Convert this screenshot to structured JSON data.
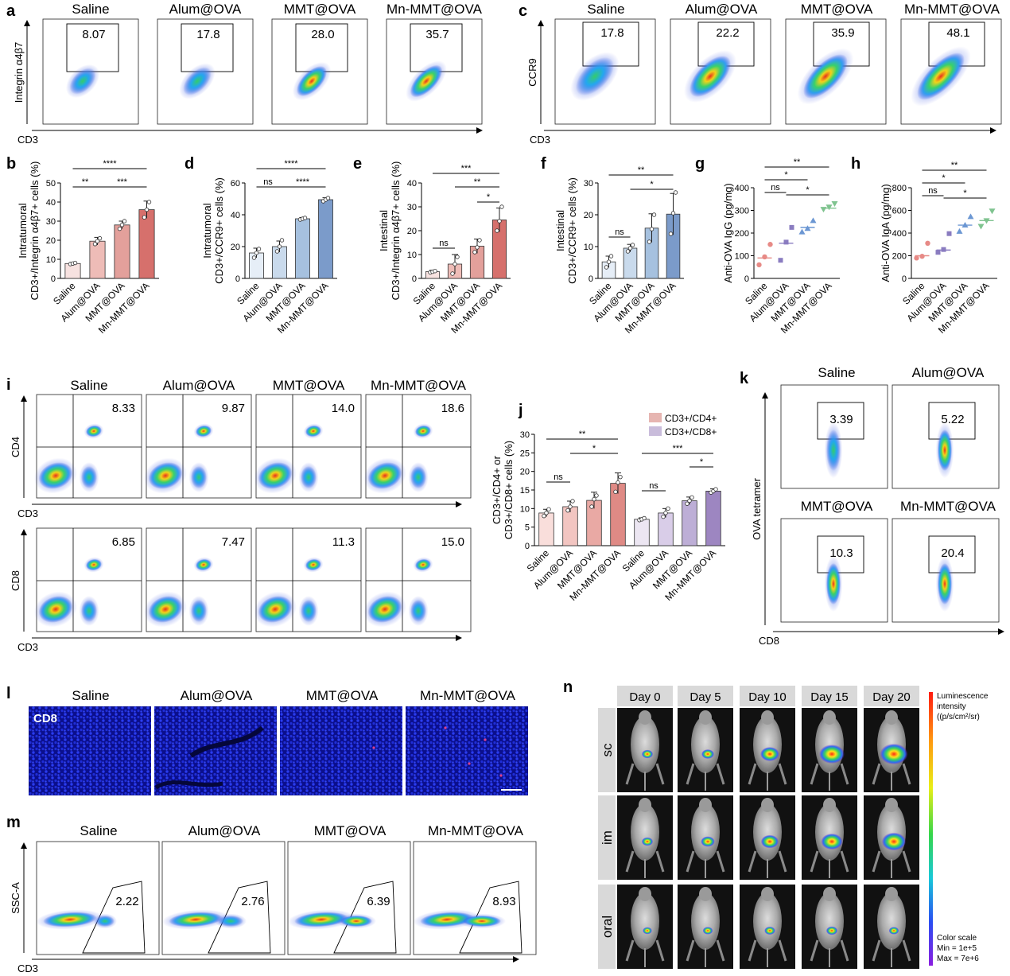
{
  "panel_letters": [
    "a",
    "b",
    "c",
    "d",
    "e",
    "f",
    "g",
    "h",
    "i",
    "j",
    "k",
    "l",
    "m",
    "n"
  ],
  "groups": [
    "Saline",
    "Alum@OVA",
    "MMT@OVA",
    "Mn-MMT@OVA"
  ],
  "flow_a": {
    "x_label": "CD3",
    "y_label": "Integrin α4β7",
    "values": [
      "8.07",
      "17.8",
      "28.0",
      "35.7"
    ]
  },
  "flow_c": {
    "x_label": "CD3",
    "y_label": "CCR9",
    "values": [
      "17.8",
      "22.2",
      "35.9",
      "48.1"
    ]
  },
  "flow_i_cd4": {
    "x_label": "CD3",
    "y_label": "CD4",
    "values": [
      "8.33",
      "9.87",
      "14.0",
      "18.6"
    ]
  },
  "flow_i_cd8": {
    "x_label": "CD3",
    "y_label": "CD8",
    "values": [
      "6.85",
      "7.47",
      "11.3",
      "15.0"
    ]
  },
  "flow_k": {
    "x_label": "CD8",
    "y_label": "OVA tetramer",
    "values": [
      "3.39",
      "5.22",
      "10.3",
      "20.4"
    ]
  },
  "flow_m": {
    "x_label": "CD3",
    "y_label": "SSC-A",
    "values": [
      "2.22",
      "2.76",
      "6.39",
      "8.93"
    ]
  },
  "panel_l": {
    "stain_label": "CD8"
  },
  "panel_n": {
    "days": [
      "Day 0",
      "Day 5",
      "Day 10",
      "Day 15",
      "Day 20"
    ],
    "routes": [
      "sc",
      "im",
      "oral"
    ],
    "scale_title": [
      "Luminescence",
      "intensity",
      "((p/s/cm²/sr)"
    ],
    "scale_notes": [
      "Color scale",
      "Min = 1e+5",
      "Max = 7e+6"
    ],
    "signal_level": [
      [
        0.2,
        0.25,
        0.5,
        0.75,
        0.85
      ],
      [
        0.2,
        0.3,
        0.45,
        0.6,
        0.7
      ],
      [
        0.12,
        0.15,
        0.18,
        0.2,
        0.15
      ]
    ]
  },
  "chart_data": [
    {
      "panel": "b",
      "type": "bar",
      "categories": [
        "Saline",
        "Alum@OVA",
        "MMT@OVA",
        "Mn-MMT@OVA"
      ],
      "values": [
        7.8,
        19.5,
        28.0,
        36.0
      ],
      "errors": [
        0.6,
        2.0,
        2.0,
        4.5
      ],
      "points": [
        [
          7.5,
          7.8,
          8.1
        ],
        [
          18,
          19.5,
          21
        ],
        [
          26,
          28,
          30
        ],
        [
          32,
          36,
          40
        ]
      ],
      "ylabel": [
        "Intratumoral",
        "CD3+/Integrin α4β7+ cells (%)"
      ],
      "ylim": [
        0,
        50
      ],
      "yticks": [
        0,
        10,
        20,
        30,
        40,
        50
      ],
      "colors": [
        "#f7e2e0",
        "#eebcb7",
        "#e3a09b",
        "#d6706c"
      ],
      "sig": [
        {
          "from": 0,
          "to": 3,
          "label": "****"
        },
        {
          "from": 0,
          "to": 1,
          "label": "**"
        },
        {
          "from": 1,
          "to": 3,
          "label": "***"
        }
      ]
    },
    {
      "panel": "d",
      "type": "bar",
      "categories": [
        "Saline",
        "Alum@OVA",
        "MMT@OVA",
        "Mn-MMT@OVA"
      ],
      "values": [
        16.0,
        20.0,
        37.5,
        49.5
      ],
      "errors": [
        3.0,
        3.5,
        0.8,
        1.2
      ],
      "points": [
        [
          13,
          16,
          18.5
        ],
        [
          17,
          20,
          24
        ],
        [
          37,
          37.5,
          38
        ],
        [
          48.5,
          49.5,
          50.5
        ]
      ],
      "ylabel": [
        "Intratumoral",
        "CD3+/CCR9+ cells (%)"
      ],
      "ylim": [
        0,
        60
      ],
      "yticks": [
        0,
        20,
        40,
        60
      ],
      "colors": [
        "#e6eef7",
        "#c9daec",
        "#a6c1df",
        "#7b9bca"
      ],
      "sig": [
        {
          "from": 0,
          "to": 3,
          "label": "****"
        },
        {
          "from": 0,
          "to": 1,
          "label": "ns"
        },
        {
          "from": 1,
          "to": 3,
          "label": "****"
        }
      ]
    },
    {
      "panel": "e",
      "type": "bar",
      "categories": [
        "Saline",
        "Alum@OVA",
        "MMT@OVA",
        "Mn-MMT@OVA"
      ],
      "values": [
        2.8,
        6.0,
        13.5,
        24.5
      ],
      "errors": [
        0.6,
        4.0,
        3.0,
        5.0
      ],
      "points": [
        [
          2.5,
          2.8,
          3.1
        ],
        [
          2,
          6,
          9
        ],
        [
          11,
          13,
          16
        ],
        [
          20,
          24,
          30
        ]
      ],
      "ylabel": [
        "Intestinal",
        "CD3+/Integrin α4β7+ cells (%)"
      ],
      "ylim": [
        0,
        40
      ],
      "yticks": [
        0,
        10,
        20,
        30,
        40
      ],
      "colors": [
        "#f7e2e0",
        "#eebcb7",
        "#e3a09b",
        "#d6706c"
      ],
      "sig": [
        {
          "from": 0,
          "to": 3,
          "label": "***"
        },
        {
          "from": 1,
          "to": 3,
          "label": "**"
        },
        {
          "from": 2,
          "to": 3,
          "label": "*"
        },
        {
          "from": 0,
          "to": 1,
          "label": "ns"
        }
      ]
    },
    {
      "panel": "f",
      "type": "bar",
      "categories": [
        "Saline",
        "Alum@OVA",
        "MMT@OVA",
        "Mn-MMT@OVA"
      ],
      "values": [
        5.2,
        9.5,
        15.8,
        20.2
      ],
      "errors": [
        1.8,
        1.2,
        4.5,
        6.5
      ],
      "points": [
        [
          3.5,
          5.2,
          7
        ],
        [
          8.5,
          9.5,
          10.5
        ],
        [
          11.5,
          15.5,
          20
        ],
        [
          14,
          20.5,
          27
        ]
      ],
      "ylabel": [
        "Intestinal",
        "CD3+/CCR9+ cells (%)"
      ],
      "ylim": [
        0,
        30
      ],
      "yticks": [
        0,
        10,
        20,
        30
      ],
      "colors": [
        "#e6eef7",
        "#c9daec",
        "#a6c1df",
        "#7b9bca"
      ],
      "sig": [
        {
          "from": 0,
          "to": 3,
          "label": "**"
        },
        {
          "from": 1,
          "to": 3,
          "label": "*"
        },
        {
          "from": 0,
          "to": 1,
          "label": "ns"
        }
      ]
    },
    {
      "panel": "g",
      "type": "scatter",
      "categories": [
        "Saline",
        "Alum@OVA",
        "MMT@OVA",
        "Mn-MMT@OVA"
      ],
      "means": [
        90,
        155,
        225,
        310
      ],
      "points": [
        [
          60,
          95,
          150
        ],
        [
          80,
          160,
          225
        ],
        [
          205,
          220,
          255
        ],
        [
          305,
          315,
          330
        ]
      ],
      "ylabel": [
        "Anti-OVA IgG (pg/mg)"
      ],
      "ylim": [
        0,
        400
      ],
      "yticks": [
        0,
        100,
        200,
        300,
        400
      ],
      "colors": [
        "#e78a86",
        "#8a7cc0",
        "#6c97d3",
        "#7fc38f"
      ],
      "markers": [
        "circle",
        "square",
        "triangle",
        "triangle-down"
      ],
      "sig": [
        {
          "from": 0,
          "to": 3,
          "label": "**"
        },
        {
          "from": 0,
          "to": 2,
          "label": "*"
        },
        {
          "from": 0,
          "to": 1,
          "label": "ns"
        },
        {
          "from": 1,
          "to": 3,
          "label": "*"
        }
      ]
    },
    {
      "panel": "h",
      "type": "scatter",
      "categories": [
        "Saline",
        "Alum@OVA",
        "MMT@OVA",
        "Mn-MMT@OVA"
      ],
      "means": [
        200,
        250,
        470,
        510
      ],
      "points": [
        [
          180,
          195,
          310
        ],
        [
          230,
          255,
          395
        ],
        [
          415,
          470,
          545
        ],
        [
          460,
          510,
          595
        ]
      ],
      "ylabel": [
        "Anti-OVA IgA (pg/mg)"
      ],
      "ylim": [
        0,
        800
      ],
      "yticks": [
        0,
        200,
        400,
        600,
        800
      ],
      "colors": [
        "#e78a86",
        "#8a7cc0",
        "#6c97d3",
        "#7fc38f"
      ],
      "markers": [
        "circle",
        "square",
        "triangle",
        "triangle-down"
      ],
      "sig": [
        {
          "from": 0,
          "to": 3,
          "label": "**"
        },
        {
          "from": 0,
          "to": 2,
          "label": "*"
        },
        {
          "from": 0,
          "to": 1,
          "label": "ns"
        },
        {
          "from": 1,
          "to": 3,
          "label": "*"
        }
      ]
    },
    {
      "panel": "j",
      "type": "bar",
      "categories": [
        "Saline",
        "Alum@OVA",
        "MMT@OVA",
        "Mn-MMT@OVA"
      ],
      "series": [
        {
          "name": "CD3+/CD4+",
          "values": [
            8.8,
            10.5,
            12.2,
            16.8
          ],
          "errors": [
            1.0,
            1.5,
            2.2,
            2.8
          ],
          "points": [
            [
              8,
              8.8,
              9.8
            ],
            [
              9.5,
              10.5,
              12
            ],
            [
              10.5,
              12.5,
              13.5
            ],
            [
              14.5,
              17,
              18.5
            ]
          ],
          "colors": [
            "#f9dedb",
            "#f2c5c1",
            "#e9a9a4",
            "#df8a85"
          ]
        },
        {
          "name": "CD3+/CD8+",
          "values": [
            7.1,
            8.8,
            12.1,
            14.7
          ],
          "errors": [
            0.4,
            1.2,
            1.0,
            0.6
          ],
          "points": [
            [
              6.9,
              7.1,
              7.4
            ],
            [
              7.8,
              8.8,
              10
            ],
            [
              11.3,
              12.1,
              13
            ],
            [
              14.3,
              14.7,
              15.2
            ]
          ],
          "colors": [
            "#ece6f2",
            "#d9cde8",
            "#bdaed6",
            "#9d86c1"
          ]
        }
      ],
      "legend_colors": [
        "#e6b5b1",
        "#c9bcdb"
      ],
      "ylabel": [
        "CD3+/CD4+ or",
        "CD3+/CD8+ cells (%)"
      ],
      "ylim": [
        0,
        30
      ],
      "yticks": [
        0,
        5,
        10,
        15,
        20,
        25,
        30
      ],
      "sig": [
        {
          "series": 0,
          "from": 0,
          "to": 3,
          "label": "**"
        },
        {
          "series": 0,
          "from": 1,
          "to": 3,
          "label": "*"
        },
        {
          "series": 0,
          "from": 0,
          "to": 1,
          "label": "ns"
        },
        {
          "series": 1,
          "from": 0,
          "to": 3,
          "label": "***"
        },
        {
          "series": 1,
          "from": 2,
          "to": 3,
          "label": "*"
        },
        {
          "series": 1,
          "from": 0,
          "to": 1,
          "label": "ns"
        }
      ]
    }
  ]
}
